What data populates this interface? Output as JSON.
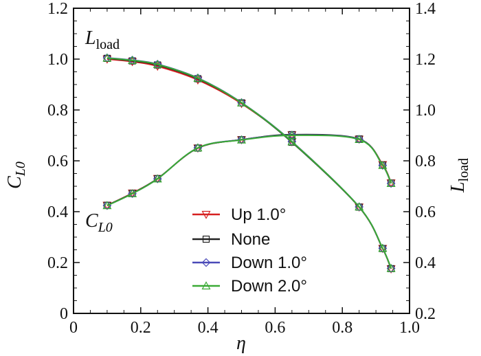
{
  "chart_data": {
    "type": "line",
    "xlabel": "η",
    "ylabel_left": {
      "main": "C",
      "sub": "L0"
    },
    "ylabel_right": {
      "main": "L",
      "sub": "load"
    },
    "xlim": [
      0,
      1.0
    ],
    "ylim_left": [
      0,
      1.2
    ],
    "ylim_right": [
      0.2,
      1.4
    ],
    "xticks": [
      "0",
      "0.2",
      "0.4",
      "0.6",
      "0.8",
      "1.0"
    ],
    "yticks_left": [
      "0",
      "0.2",
      "0.4",
      "0.6",
      "0.8",
      "1.0",
      "1.2"
    ],
    "yticks_right": [
      "0.2",
      "0.4",
      "0.6",
      "0.8",
      "1.0",
      "1.2",
      "1.4"
    ],
    "grid": false,
    "legend_position": "bottom-center",
    "annotations": [
      {
        "main": "L",
        "sub": "load"
      },
      {
        "main": "C",
        "sub": "L0"
      }
    ],
    "x": [
      0.1,
      0.175,
      0.25,
      0.37,
      0.5,
      0.65,
      0.85,
      0.92,
      0.945
    ],
    "series": [
      {
        "name": "Up 1.0°",
        "color": "#d62020",
        "marker": "triangle-down",
        "cl0": [
          0.425,
          0.473,
          0.53,
          0.65,
          0.683,
          0.702,
          0.685,
          0.585,
          0.513
        ],
        "lload": [
          1.2,
          1.19,
          1.172,
          1.118,
          1.025,
          0.875,
          0.618,
          0.455,
          0.375
        ]
      },
      {
        "name": "None",
        "color": "#222222",
        "marker": "square",
        "cl0": [
          0.425,
          0.472,
          0.53,
          0.65,
          0.683,
          0.703,
          0.686,
          0.583,
          0.512
        ],
        "lload": [
          1.203,
          1.193,
          1.177,
          1.123,
          1.028,
          0.873,
          0.618,
          0.455,
          0.376
        ]
      },
      {
        "name": "Down 1.0°",
        "color": "#4a4ab8",
        "marker": "diamond",
        "cl0": [
          0.424,
          0.471,
          0.529,
          0.651,
          0.683,
          0.701,
          0.685,
          0.582,
          0.511
        ],
        "lload": [
          1.205,
          1.196,
          1.18,
          1.126,
          1.029,
          0.876,
          0.619,
          0.456,
          0.377
        ]
      },
      {
        "name": "Down 2.0°",
        "color": "#3aaa35",
        "marker": "triangle-up",
        "cl0": [
          0.424,
          0.471,
          0.529,
          0.651,
          0.682,
          0.7,
          0.684,
          0.582,
          0.511
        ],
        "lload": [
          1.204,
          1.195,
          1.179,
          1.125,
          1.028,
          0.875,
          0.619,
          0.456,
          0.377
        ]
      }
    ]
  }
}
